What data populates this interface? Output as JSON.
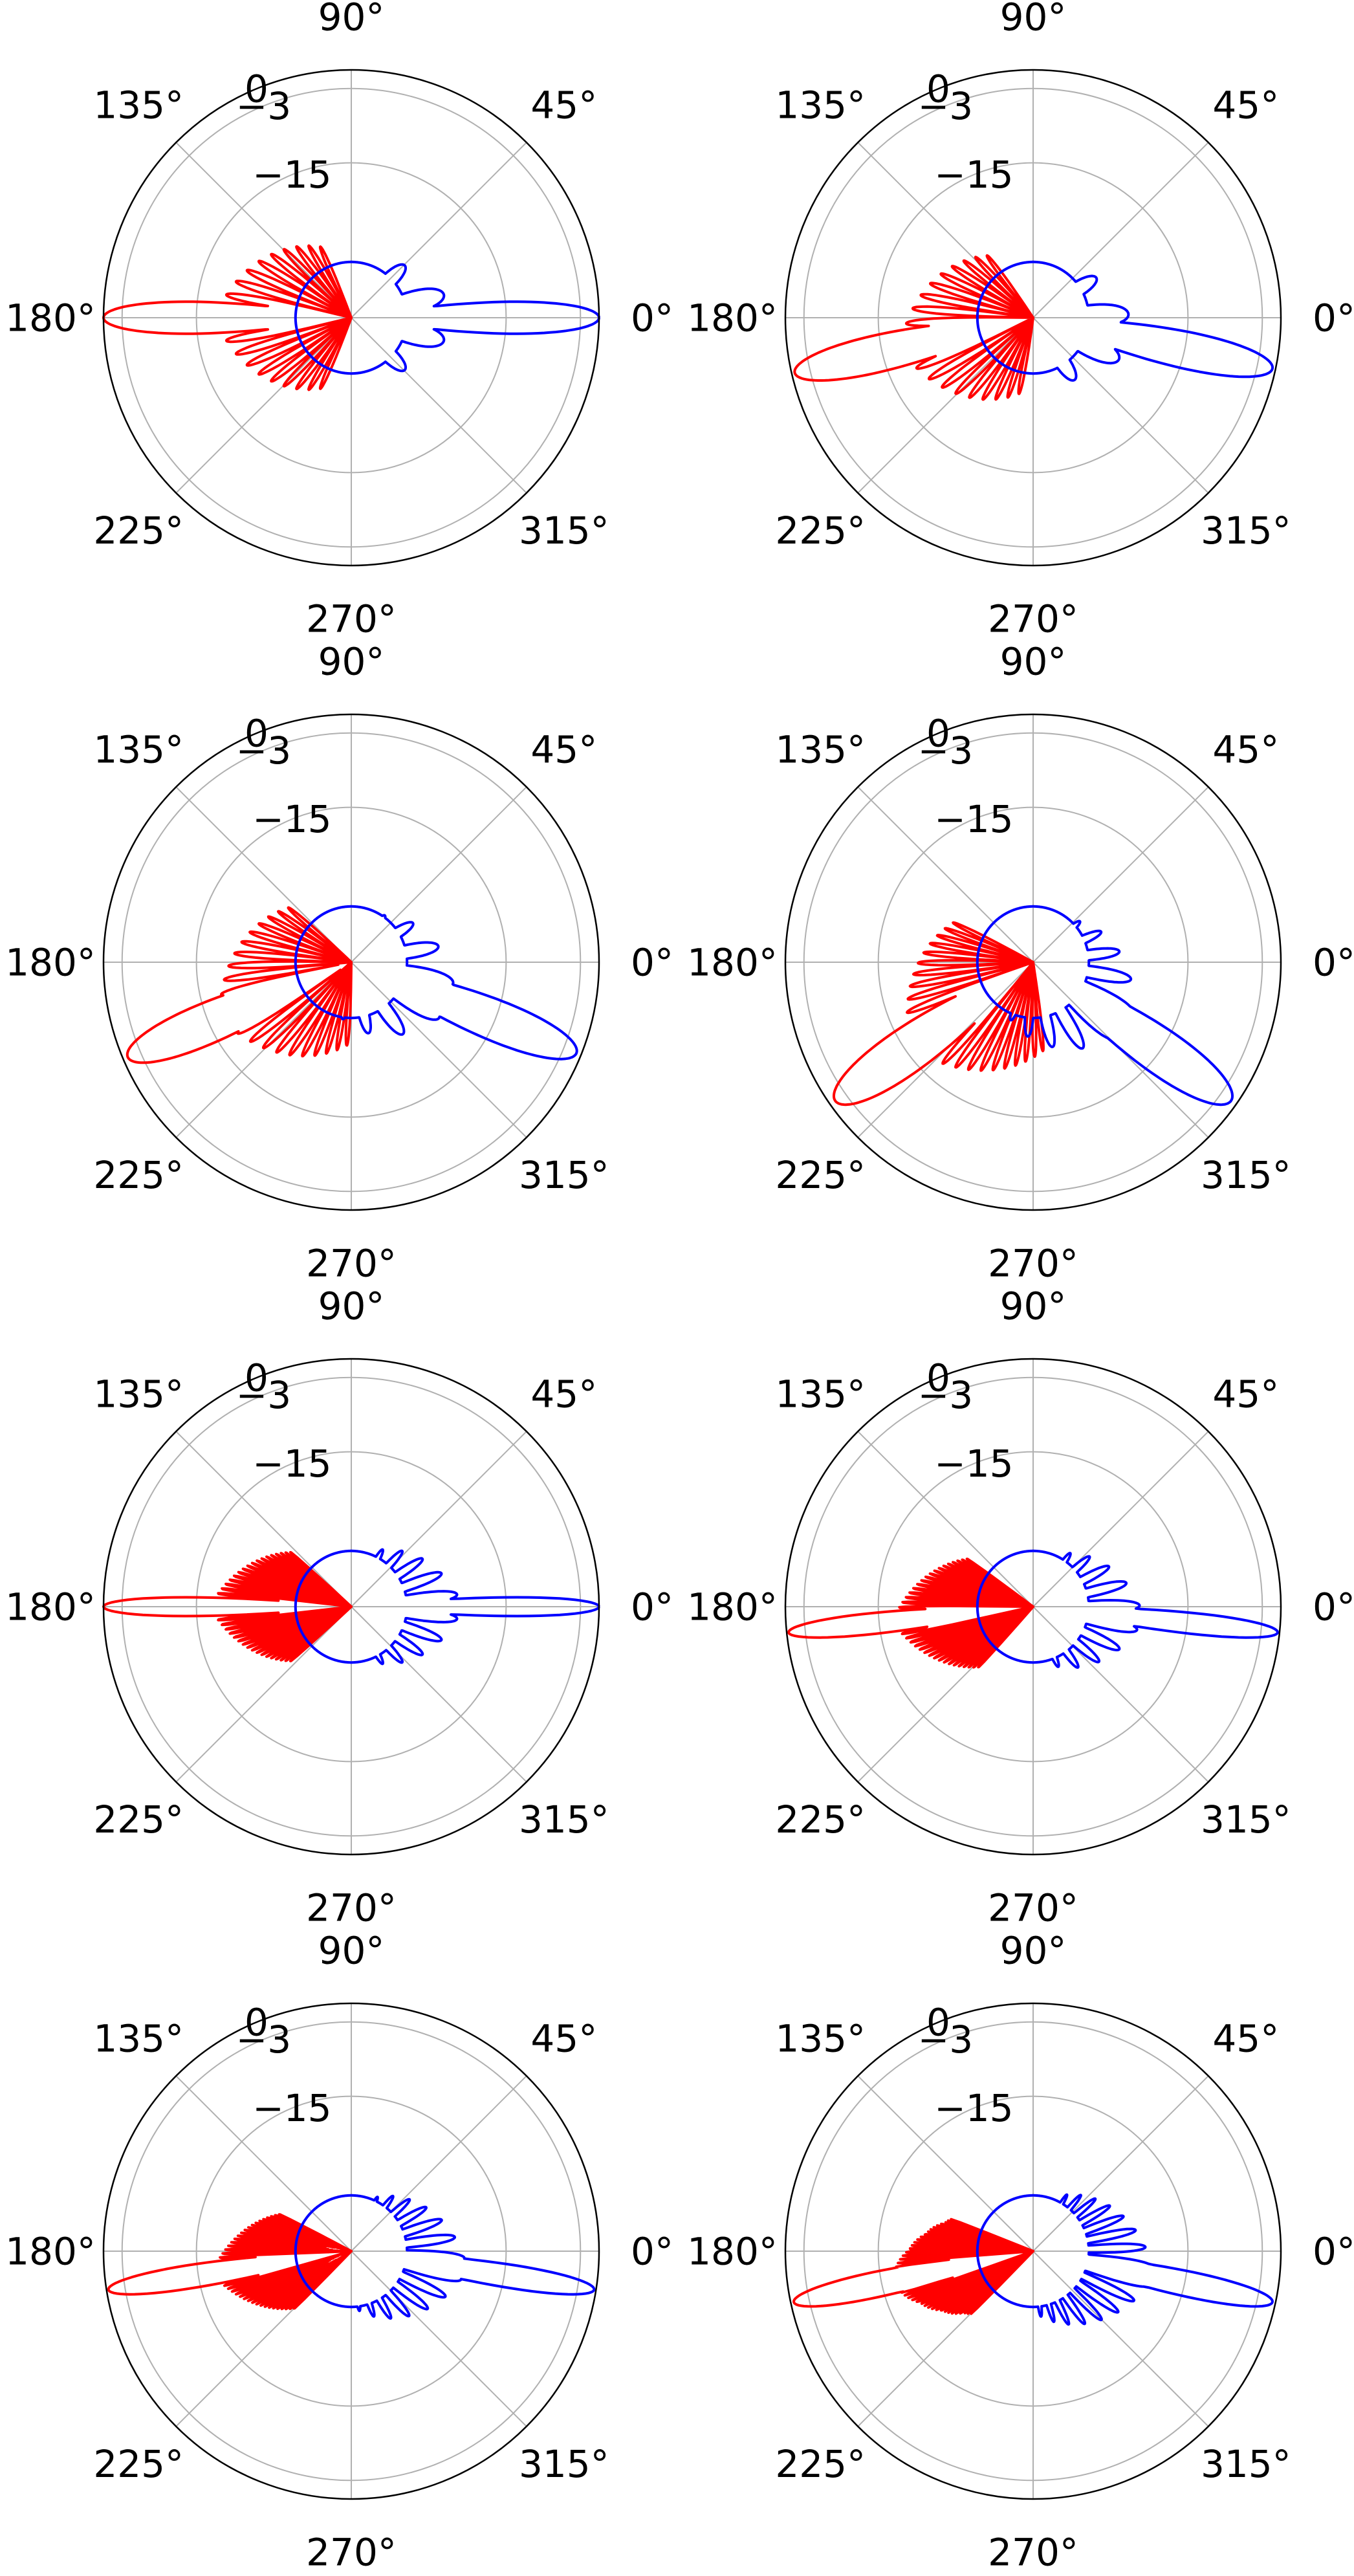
{
  "colors": {
    "series_a": "#ff0000",
    "series_b": "#0000ff",
    "grid": "#b0b0b0",
    "frame": "#000000",
    "background": "#ffffff"
  },
  "layout": {
    "rows": 4,
    "columns": 2
  },
  "common_axes": {
    "angular_ticks": [
      "0°",
      "45°",
      "90°",
      "135°",
      "180°",
      "225°",
      "270°",
      "315°"
    ],
    "radial_ticks": [
      "0",
      "−3",
      "−15"
    ],
    "radial_tick_values_db": [
      0,
      -3,
      -15
    ],
    "r_range_db": [
      -40,
      0
    ],
    "grid": true
  },
  "chart_data": [
    {
      "type": "polar-line",
      "angle_range_deg": [
        0,
        360
      ],
      "r_range_db": [
        -40,
        0
      ],
      "series": [
        {
          "color": "#ff0000",
          "main_lobe_deg": 180,
          "main_lobe_db": 0,
          "half_width_deg": 6.8,
          "sidelobes": 10,
          "sidelobe_db": -18,
          "backlobe_db": -40
        },
        {
          "color": "#0000ff",
          "main_lobe_deg": 0,
          "main_lobe_db": 0,
          "half_width_deg": 6.8,
          "sidelobes": 3,
          "sidelobe_db": -23,
          "backlobe_db": -31
        }
      ]
    },
    {
      "type": "polar-line",
      "angle_range_deg": [
        0,
        360
      ],
      "r_range_db": [
        -40,
        0
      ],
      "series": [
        {
          "color": "#ff0000",
          "main_lobe_deg": 193,
          "main_lobe_db": -0.5,
          "half_width_deg": 8,
          "sidelobes": 10,
          "sidelobe_db": -18,
          "backlobe_db": -40
        },
        {
          "color": "#0000ff",
          "main_lobe_deg": 348,
          "main_lobe_db": -0.5,
          "half_width_deg": 8,
          "sidelobes": 3,
          "sidelobe_db": -23,
          "backlobe_db": -31
        }
      ]
    },
    {
      "type": "polar-line",
      "angle_range_deg": [
        0,
        360
      ],
      "r_range_db": [
        -40,
        0
      ],
      "series": [
        {
          "color": "#ff0000",
          "main_lobe_deg": 203,
          "main_lobe_db": -0.8,
          "half_width_deg": 9,
          "sidelobes": 11,
          "sidelobe_db": -17,
          "backlobe_db": -40
        },
        {
          "color": "#0000ff",
          "main_lobe_deg": 338,
          "main_lobe_db": -0.8,
          "half_width_deg": 9,
          "sidelobes": 4,
          "sidelobe_db": -22,
          "backlobe_db": -31
        }
      ]
    },
    {
      "type": "polar-line",
      "angle_range_deg": [
        0,
        360
      ],
      "r_range_db": [
        -40,
        0
      ],
      "series": [
        {
          "color": "#ff0000",
          "main_lobe_deg": 215,
          "main_lobe_db": -1,
          "half_width_deg": 10,
          "sidelobes": 12,
          "sidelobe_db": -16,
          "backlobe_db": -40
        },
        {
          "color": "#0000ff",
          "main_lobe_deg": 325,
          "main_lobe_db": -1,
          "half_width_deg": 10,
          "sidelobes": 5,
          "sidelobe_db": -21,
          "backlobe_db": -31
        }
      ]
    },
    {
      "type": "polar-line",
      "angle_range_deg": [
        0,
        360
      ],
      "r_range_db": [
        -40,
        0
      ],
      "series": [
        {
          "color": "#ff0000",
          "main_lobe_deg": 180,
          "main_lobe_db": 0,
          "half_width_deg": 4,
          "sidelobes": 19,
          "sidelobe_db": -17,
          "backlobe_db": -40
        },
        {
          "color": "#0000ff",
          "main_lobe_deg": 0,
          "main_lobe_db": 0,
          "half_width_deg": 4,
          "sidelobes": 6,
          "sidelobe_db": -22,
          "backlobe_db": -31
        }
      ]
    },
    {
      "type": "polar-line",
      "angle_range_deg": [
        0,
        360
      ],
      "r_range_db": [
        -40,
        0
      ],
      "series": [
        {
          "color": "#ff0000",
          "main_lobe_deg": 186,
          "main_lobe_db": -0.3,
          "half_width_deg": 4.5,
          "sidelobes": 19,
          "sidelobe_db": -17,
          "backlobe_db": -40
        },
        {
          "color": "#0000ff",
          "main_lobe_deg": 354,
          "main_lobe_db": -0.3,
          "half_width_deg": 4.5,
          "sidelobes": 6,
          "sidelobe_db": -22,
          "backlobe_db": -31
        }
      ]
    },
    {
      "type": "polar-line",
      "angle_range_deg": [
        0,
        360
      ],
      "r_range_db": [
        -40,
        0
      ],
      "series": [
        {
          "color": "#ff0000",
          "main_lobe_deg": 189,
          "main_lobe_db": -0.3,
          "half_width_deg": 5,
          "sidelobes": 21,
          "sidelobe_db": -17,
          "backlobe_db": -40
        },
        {
          "color": "#0000ff",
          "main_lobe_deg": 351,
          "main_lobe_db": -0.3,
          "half_width_deg": 5,
          "sidelobes": 7,
          "sidelobe_db": -21,
          "backlobe_db": -31
        }
      ]
    },
    {
      "type": "polar-line",
      "angle_range_deg": [
        0,
        360
      ],
      "r_range_db": [
        -40,
        0
      ],
      "series": [
        {
          "color": "#ff0000",
          "main_lobe_deg": 192,
          "main_lobe_db": -0.5,
          "half_width_deg": 5.5,
          "sidelobes": 22,
          "sidelobe_db": -16,
          "backlobe_db": -40
        },
        {
          "color": "#0000ff",
          "main_lobe_deg": 348,
          "main_lobe_db": -0.5,
          "half_width_deg": 5.5,
          "sidelobes": 8,
          "sidelobe_db": -20,
          "backlobe_db": -31
        }
      ]
    }
  ]
}
